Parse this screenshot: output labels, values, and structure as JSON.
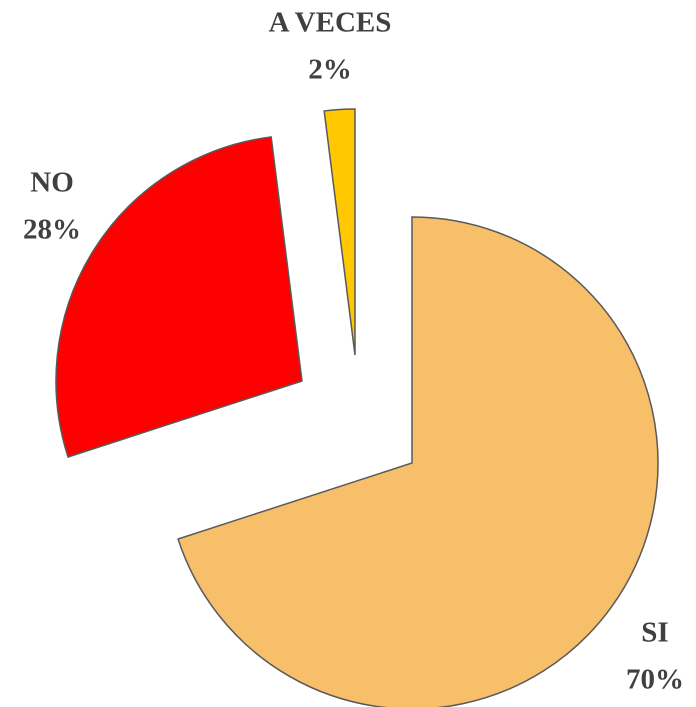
{
  "chart_data": {
    "type": "pie",
    "categories": [
      "SI",
      "NO",
      "A VECES"
    ],
    "values": [
      70,
      28,
      2
    ],
    "value_labels": [
      "70%",
      "28%",
      "2%"
    ],
    "colors": [
      "#f8bf6a",
      "#ff0000",
      "#ffc800"
    ]
  }
}
